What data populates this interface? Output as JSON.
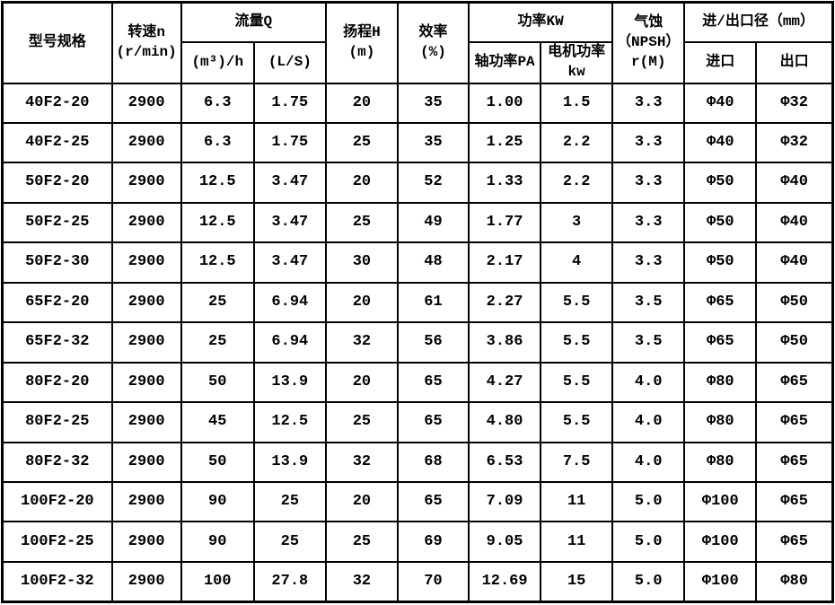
{
  "table": {
    "headers": {
      "model": "型号规格",
      "speed": "转速n\n(r/min)",
      "flow_group": "流量Q",
      "flow_m3h": "(m³)/h",
      "flow_ls": "(L/S)",
      "head": "扬程H\n(m)",
      "efficiency": "效率\n(%)",
      "power_group": "功率KW",
      "power_shaft": "轴功率PA",
      "power_motor": "电机功率\nkw",
      "npsh": "气蚀\n（NPSH）\nr(M)",
      "ports_group": "进/出口径（mm）",
      "port_inlet": "进口",
      "port_outlet": "出口"
    },
    "rows": [
      [
        "40F2-20",
        "2900",
        "6.3",
        "1.75",
        "20",
        "35",
        "1.00",
        "1.5",
        "3.3",
        "Φ40",
        "Φ32"
      ],
      [
        "40F2-25",
        "2900",
        "6.3",
        "1.75",
        "25",
        "35",
        "1.25",
        "2.2",
        "3.3",
        "Φ40",
        "Φ32"
      ],
      [
        "50F2-20",
        "2900",
        "12.5",
        "3.47",
        "20",
        "52",
        "1.33",
        "2.2",
        "3.3",
        "Φ50",
        "Φ40"
      ],
      [
        "50F2-25",
        "2900",
        "12.5",
        "3.47",
        "25",
        "49",
        "1.77",
        "3",
        "3.3",
        "Φ50",
        "Φ40"
      ],
      [
        "50F2-30",
        "2900",
        "12.5",
        "3.47",
        "30",
        "48",
        "2.17",
        "4",
        "3.3",
        "Φ50",
        "Φ40"
      ],
      [
        "65F2-20",
        "2900",
        "25",
        "6.94",
        "20",
        "61",
        "2.27",
        "5.5",
        "3.5",
        "Φ65",
        "Φ50"
      ],
      [
        "65F2-32",
        "2900",
        "25",
        "6.94",
        "32",
        "56",
        "3.86",
        "5.5",
        "3.5",
        "Φ65",
        "Φ50"
      ],
      [
        "80F2-20",
        "2900",
        "50",
        "13.9",
        "20",
        "65",
        "4.27",
        "5.5",
        "4.0",
        "Φ80",
        "Φ65"
      ],
      [
        "80F2-25",
        "2900",
        "45",
        "12.5",
        "25",
        "65",
        "4.80",
        "5.5",
        "4.0",
        "Φ80",
        "Φ65"
      ],
      [
        "80F2-32",
        "2900",
        "50",
        "13.9",
        "32",
        "68",
        "6.53",
        "7.5",
        "4.0",
        "Φ80",
        "Φ65"
      ],
      [
        "100F2-20",
        "2900",
        "90",
        "25",
        "20",
        "65",
        "7.09",
        "11",
        "5.0",
        "Φ100",
        "Φ65"
      ],
      [
        "100F2-25",
        "2900",
        "90",
        "25",
        "25",
        "69",
        "9.05",
        "11",
        "5.0",
        "Φ100",
        "Φ65"
      ],
      [
        "100F2-32",
        "2900",
        "100",
        "27.8",
        "32",
        "70",
        "12.69",
        "15",
        "5.0",
        "Φ100",
        "Φ80"
      ]
    ],
    "colors": {
      "border": "#000000",
      "background": "#ffffff",
      "text": "#000000"
    }
  }
}
